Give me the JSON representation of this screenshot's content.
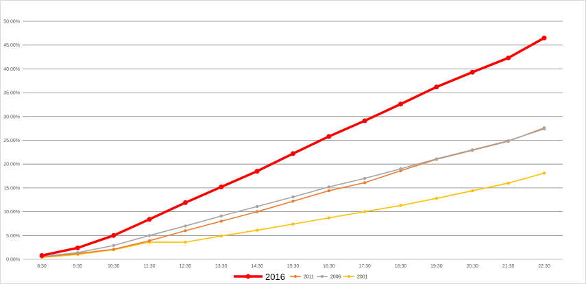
{
  "chart_data": {
    "type": "line",
    "title": "",
    "xlabel": "",
    "ylabel": "",
    "categories": [
      "8:30",
      "9:30",
      "10:30",
      "11:30",
      "12:30",
      "13:30",
      "14:30",
      "15:30",
      "16:30",
      "17:30",
      "18:30",
      "19:30",
      "20:30",
      "21:30",
      "22:30"
    ],
    "y_tick_labels": [
      "0.00%",
      "5.00%",
      "10.00%",
      "15.00%",
      "20.00%",
      "25.00%",
      "30.00%",
      "35.00%",
      "40.00%",
      "45.00%",
      "50.00%"
    ],
    "ylim": [
      0,
      50
    ],
    "grid": true,
    "legend_position": "bottom",
    "series": [
      {
        "name": "2016",
        "color": "#ff0000",
        "values": [
          0.8,
          2.4,
          5.0,
          8.4,
          11.9,
          15.2,
          18.5,
          22.2,
          25.8,
          29.1,
          32.6,
          36.2,
          39.3,
          42.3,
          46.5
        ]
      },
      {
        "name": "2011",
        "color": "#ed7d31",
        "values": [
          0.5,
          1.2,
          2.1,
          3.9,
          6.0,
          8.0,
          10.0,
          12.2,
          14.4,
          16.1,
          18.6,
          21.0,
          22.9,
          24.8,
          27.6
        ]
      },
      {
        "name": "2006",
        "color": "#a5a5a5",
        "values": [
          0.6,
          1.4,
          2.9,
          5.0,
          7.0,
          9.1,
          11.1,
          13.1,
          15.2,
          17.0,
          19.0,
          21.1,
          23.0,
          24.9,
          27.4
        ]
      },
      {
        "name": "2001",
        "color": "#ffc000",
        "values": [
          0.4,
          1.0,
          2.0,
          3.6,
          3.6,
          4.9,
          6.1,
          7.4,
          8.7,
          10.0,
          11.3,
          12.8,
          14.4,
          16.0,
          18.1
        ]
      }
    ]
  }
}
